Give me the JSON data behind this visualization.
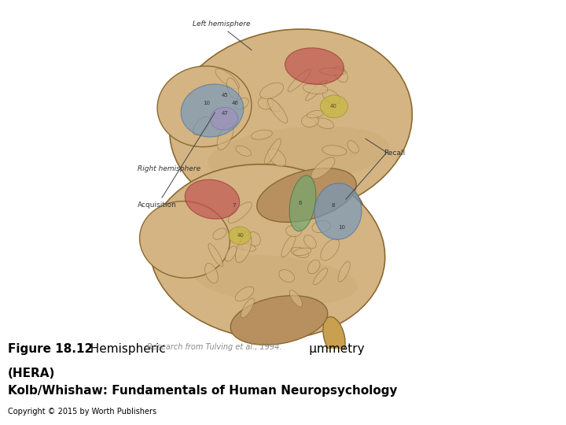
{
  "background_color": "#ffffff",
  "figure_width": 7.2,
  "figure_height": 5.4,
  "dpi": 100,
  "title_bold": "Figure 18.12",
  "title_normal": "  Hemispheric",
  "title_small": "Research from Tulving et al., 1994.",
  "title_end": "     μmmetry",
  "title_line2": "(HERA)",
  "subtitle": "Kolb/Whishaw: Fundamentals of Human Neuropsychology",
  "copyright": "Copyright © 2015 by Worth Publishers",
  "left_hemi_label": "Left hemisphere",
  "right_hemi_label": "Right hemisphere",
  "acquisition_label": "Acquisition",
  "recall_label": "Recall",
  "text_color": "#000000",
  "label_color": "#333333",
  "small_text_color": "#888888",
  "brain_tan": "#d4b483",
  "brain_tan_dark": "#b89060",
  "brain_outline": "#8b6a30",
  "brain_shadow": "#c8a870",
  "red_region": "#c05050",
  "blue_region": "#7098c0",
  "yellow_region": "#c8b840",
  "green_region": "#70a870",
  "purple_region": "#a090c0",
  "stem_color": "#c8a050",
  "line_color": "#444444",
  "title_fontsize": 11,
  "label_fontsize": 6.5,
  "copyright_fontsize": 7,
  "subtitle_fontsize": 11
}
